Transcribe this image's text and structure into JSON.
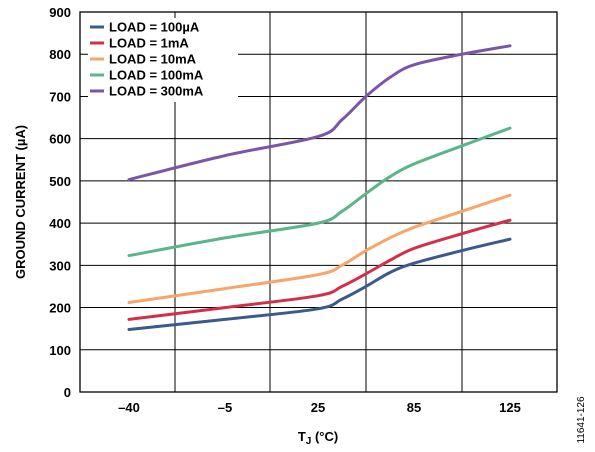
{
  "chart_data": {
    "type": "line",
    "xlabel_main": "T",
    "xlabel_sub": "J",
    "xlabel_unit": " (°C)",
    "ylabel": "GROUND CURRENT (µA)",
    "x_tick_labels": [
      "–40",
      "–5",
      "25",
      "85",
      "125"
    ],
    "y_ticks": [
      0,
      100,
      200,
      300,
      400,
      500,
      600,
      700,
      800,
      900
    ],
    "ylim": [
      0,
      900
    ],
    "grid": true,
    "legend_position": "top-left",
    "figure_code": "11641-126",
    "series": [
      {
        "name": "LOAD = 100µA",
        "color": "#3a5a8c",
        "points": [
          [
            -40,
            148
          ],
          [
            -5,
            172
          ],
          [
            25,
            197
          ],
          [
            40,
            220
          ],
          [
            55,
            250
          ],
          [
            70,
            283
          ],
          [
            85,
            305
          ],
          [
            105,
            335
          ],
          [
            125,
            362
          ]
        ]
      },
      {
        "name": "LOAD = 1mA",
        "color": "#d32f4a",
        "points": [
          [
            -40,
            172
          ],
          [
            -5,
            200
          ],
          [
            25,
            228
          ],
          [
            40,
            250
          ],
          [
            55,
            280
          ],
          [
            70,
            312
          ],
          [
            85,
            340
          ],
          [
            105,
            375
          ],
          [
            125,
            407
          ]
        ]
      },
      {
        "name": "LOAD = 10mA",
        "color": "#f7a56a",
        "points": [
          [
            -40,
            212
          ],
          [
            -5,
            245
          ],
          [
            25,
            278
          ],
          [
            40,
            300
          ],
          [
            55,
            335
          ],
          [
            70,
            365
          ],
          [
            85,
            390
          ],
          [
            105,
            428
          ],
          [
            125,
            466
          ]
        ]
      },
      {
        "name": "LOAD = 100mA",
        "color": "#5ab58a",
        "points": [
          [
            -40,
            323
          ],
          [
            -5,
            365
          ],
          [
            25,
            400
          ],
          [
            40,
            428
          ],
          [
            55,
            470
          ],
          [
            70,
            510
          ],
          [
            85,
            540
          ],
          [
            105,
            583
          ],
          [
            125,
            625
          ]
        ]
      },
      {
        "name": "LOAD = 300mA",
        "color": "#7b56a8",
        "points": [
          [
            -40,
            503
          ],
          [
            -5,
            560
          ],
          [
            25,
            605
          ],
          [
            40,
            645
          ],
          [
            55,
            700
          ],
          [
            70,
            745
          ],
          [
            85,
            775
          ],
          [
            105,
            800
          ],
          [
            125,
            820
          ]
        ]
      }
    ]
  }
}
